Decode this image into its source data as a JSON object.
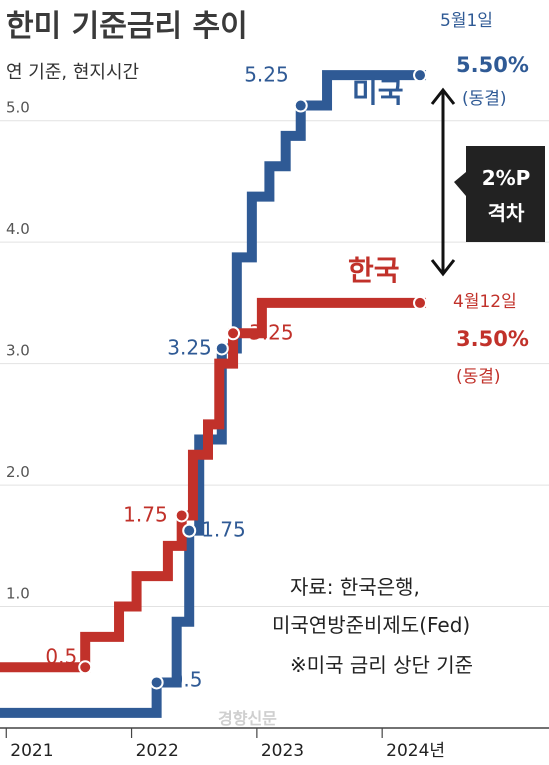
{
  "header": {
    "title": "한미 기준금리 추이",
    "subtitle": "연 기준, 현지시간"
  },
  "chart_data": {
    "type": "line",
    "step": true,
    "ylim": [
      0,
      5.5
    ],
    "yticks": [
      "1.0",
      "2.0",
      "3.0",
      "4.0",
      "5.0"
    ],
    "ytick_values": [
      1,
      2,
      3,
      4,
      5
    ],
    "x_ticks": [
      "2021",
      "2022",
      "2023",
      "2024년"
    ],
    "x_tick_values": [
      2021.0,
      2022.0,
      2023.0,
      2024.0
    ],
    "xlim": [
      2020.95,
      2025.1
    ],
    "series": [
      {
        "name": "미국",
        "color": "#2f5a95",
        "points": [
          [
            2020.95,
            0.125
          ],
          [
            2022.2,
            0.375
          ],
          [
            2022.36,
            0.875
          ],
          [
            2022.46,
            1.625
          ],
          [
            2022.54,
            2.375
          ],
          [
            2022.72,
            3.125
          ],
          [
            2022.84,
            3.875
          ],
          [
            2022.96,
            4.375
          ],
          [
            2023.1,
            4.625
          ],
          [
            2023.23,
            4.875
          ],
          [
            2023.35,
            5.125
          ],
          [
            2023.56,
            5.375
          ],
          [
            2024.35,
            5.375
          ]
        ],
        "labels": [
          {
            "text": "0.5",
            "x": 2022.2,
            "y": 0.375
          },
          {
            "text": "1.75",
            "x": 2022.46,
            "y": 1.625
          },
          {
            "text": "3.25",
            "x": 2022.72,
            "y": 3.125
          },
          {
            "text": "5.25",
            "x": 2023.35,
            "y": 5.125
          }
        ],
        "end_date": "5월1일",
        "end_value": "5.50%",
        "end_note": "(동결)"
      },
      {
        "name": "한국",
        "color": "#c1312a",
        "points": [
          [
            2020.95,
            0.5
          ],
          [
            2021.63,
            0.75
          ],
          [
            2021.9,
            1.0
          ],
          [
            2022.04,
            1.25
          ],
          [
            2022.29,
            1.5
          ],
          [
            2022.4,
            1.75
          ],
          [
            2022.49,
            2.25
          ],
          [
            2022.61,
            2.5
          ],
          [
            2022.7,
            3.0
          ],
          [
            2022.81,
            3.25
          ],
          [
            2023.04,
            3.5
          ],
          [
            2024.35,
            3.5
          ]
        ],
        "labels": [
          {
            "text": "0.5",
            "x": 2021.63,
            "y": 0.5
          },
          {
            "text": "1.75",
            "x": 2022.4,
            "y": 1.75
          },
          {
            "text": "3.25",
            "x": 2022.81,
            "y": 3.25
          }
        ],
        "end_date": "4월12일",
        "end_value": "3.50%",
        "end_note": "(동결)"
      }
    ],
    "annotation": {
      "text_line1": "2%P",
      "text_line2": "격차"
    }
  },
  "source": {
    "line1": "자료: 한국은행,",
    "line2": "미국연방준비제도(Fed)",
    "line3": "※미국 금리 상단 기준"
  },
  "watermark": "경향신문"
}
